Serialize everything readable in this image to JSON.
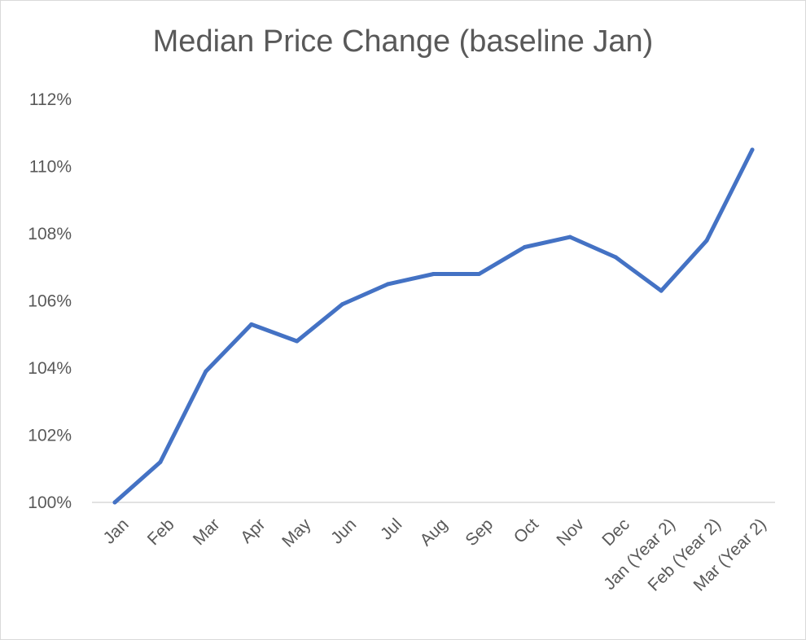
{
  "chart_data": {
    "type": "line",
    "title": "Median Price Change (baseline Jan)",
    "xlabel": "",
    "ylabel": "",
    "categories": [
      "Jan",
      "Feb",
      "Mar",
      "Apr",
      "May",
      "Jun",
      "Jul",
      "Aug",
      "Sep",
      "Oct",
      "Nov",
      "Dec",
      "Jan (Year 2)",
      "Feb (Year 2)",
      "Mar (Year 2)"
    ],
    "series": [
      {
        "values": [
          100.0,
          101.2,
          103.9,
          105.3,
          104.8,
          105.9,
          106.5,
          106.8,
          106.8,
          107.6,
          107.9,
          107.3,
          106.3,
          107.8,
          110.5
        ]
      }
    ],
    "ylim": [
      100,
      112
    ],
    "yticks": [
      "100%",
      "102%",
      "104%",
      "106%",
      "108%",
      "110%",
      "112%"
    ],
    "grid": false,
    "colors": {
      "line": "#4472C4",
      "axis": "#d9d9d9",
      "text": "#595959"
    }
  }
}
